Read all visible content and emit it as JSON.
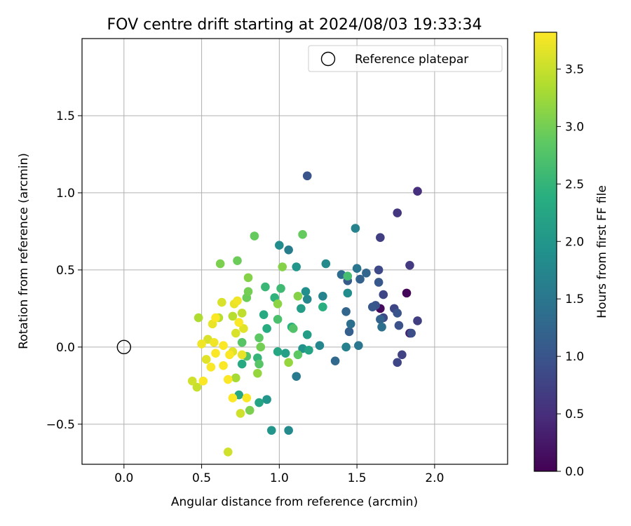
{
  "chart_data": {
    "type": "scatter",
    "title": "FOV centre drift starting at 2024/08/03 19:33:34",
    "xlabel": "Angular distance from reference (arcmin)",
    "ylabel": "Rotation from reference (arcmin)",
    "xlim": [
      -0.27,
      2.47
    ],
    "ylim": [
      -0.76,
      2.0
    ],
    "xticks": [
      0.0,
      0.5,
      1.0,
      1.5,
      2.0
    ],
    "xtick_labels": [
      "0.0",
      "0.5",
      "1.0",
      "1.5",
      "2.0"
    ],
    "yticks": [
      -0.5,
      0.0,
      0.5,
      1.0,
      1.5
    ],
    "ytick_labels": [
      "−0.5",
      "0.0",
      "0.5",
      "1.0",
      "1.5"
    ],
    "grid": true,
    "legend": {
      "position": "top-right",
      "entries": [
        "Reference platepar"
      ]
    },
    "reference_point": {
      "x": 0.0,
      "y": 0.0,
      "label": "Reference platepar"
    },
    "colorbar": {
      "label": "Hours from first FF file",
      "range": [
        0.0,
        3.82
      ],
      "ticks": [
        0.0,
        0.5,
        1.0,
        1.5,
        2.0,
        2.5,
        3.0,
        3.5
      ],
      "tick_labels": [
        "0.0",
        "0.5",
        "1.0",
        "1.5",
        "2.0",
        "2.5",
        "3.0",
        "3.5"
      ],
      "colormap": "viridis"
    },
    "points": [
      {
        "x": 1.82,
        "y": 0.35,
        "t": 0.05
      },
      {
        "x": 1.65,
        "y": 0.25,
        "t": 0.1
      },
      {
        "x": 1.84,
        "y": 0.09,
        "t": 0.3
      },
      {
        "x": 1.89,
        "y": 1.01,
        "t": 0.5
      },
      {
        "x": 1.76,
        "y": 0.87,
        "t": 0.6
      },
      {
        "x": 1.84,
        "y": 0.53,
        "t": 0.65
      },
      {
        "x": 1.65,
        "y": 0.71,
        "t": 0.7
      },
      {
        "x": 1.89,
        "y": 0.17,
        "t": 0.7
      },
      {
        "x": 1.79,
        "y": -0.05,
        "t": 0.75
      },
      {
        "x": 1.76,
        "y": -0.1,
        "t": 0.8
      },
      {
        "x": 1.74,
        "y": 0.25,
        "t": 0.8
      },
      {
        "x": 1.67,
        "y": 0.34,
        "t": 0.8
      },
      {
        "x": 1.64,
        "y": 0.5,
        "t": 0.85
      },
      {
        "x": 1.67,
        "y": 0.19,
        "t": 0.85
      },
      {
        "x": 1.85,
        "y": 0.09,
        "t": 0.9
      },
      {
        "x": 1.77,
        "y": 0.14,
        "t": 0.95
      },
      {
        "x": 1.62,
        "y": 0.27,
        "t": 0.95
      },
      {
        "x": 1.18,
        "y": 1.11,
        "t": 1.0
      },
      {
        "x": 1.76,
        "y": 0.22,
        "t": 1.0
      },
      {
        "x": 1.64,
        "y": 0.42,
        "t": 1.05
      },
      {
        "x": 1.6,
        "y": 0.26,
        "t": 1.05
      },
      {
        "x": 1.44,
        "y": 0.43,
        "t": 1.1
      },
      {
        "x": 1.45,
        "y": 0.1,
        "t": 1.15
      },
      {
        "x": 1.65,
        "y": 0.18,
        "t": 1.2
      },
      {
        "x": 1.52,
        "y": 0.44,
        "t": 1.2
      },
      {
        "x": 1.56,
        "y": 0.48,
        "t": 1.25
      },
      {
        "x": 1.43,
        "y": 0.23,
        "t": 1.25
      },
      {
        "x": 1.36,
        "y": -0.09,
        "t": 1.3
      },
      {
        "x": 1.4,
        "y": 0.47,
        "t": 1.35
      },
      {
        "x": 1.66,
        "y": 0.13,
        "t": 1.4
      },
      {
        "x": 1.46,
        "y": 0.15,
        "t": 1.4
      },
      {
        "x": 1.51,
        "y": 0.01,
        "t": 1.5
      },
      {
        "x": 1.5,
        "y": 0.51,
        "t": 1.5
      },
      {
        "x": 1.11,
        "y": -0.19,
        "t": 1.55
      },
      {
        "x": 1.06,
        "y": 0.63,
        "t": 1.6
      },
      {
        "x": 1.43,
        "y": 0.0,
        "t": 1.65
      },
      {
        "x": 1.49,
        "y": 0.77,
        "t": 1.7
      },
      {
        "x": 1.28,
        "y": 0.33,
        "t": 1.7
      },
      {
        "x": 1.26,
        "y": 0.01,
        "t": 1.75
      },
      {
        "x": 1.18,
        "y": 0.31,
        "t": 1.75
      },
      {
        "x": 1.3,
        "y": 0.54,
        "t": 1.8
      },
      {
        "x": 1.06,
        "y": -0.54,
        "t": 1.8
      },
      {
        "x": 1.0,
        "y": 0.66,
        "t": 1.85
      },
      {
        "x": 1.44,
        "y": 0.35,
        "t": 1.85
      },
      {
        "x": 1.17,
        "y": 0.36,
        "t": 1.9
      },
      {
        "x": 1.15,
        "y": -0.01,
        "t": 1.95
      },
      {
        "x": 0.95,
        "y": -0.54,
        "t": 2.0
      },
      {
        "x": 0.92,
        "y": -0.34,
        "t": 2.0
      },
      {
        "x": 1.11,
        "y": 0.52,
        "t": 2.0
      },
      {
        "x": 1.14,
        "y": 0.25,
        "t": 2.1
      },
      {
        "x": 1.18,
        "y": 0.08,
        "t": 2.1
      },
      {
        "x": 1.04,
        "y": -0.04,
        "t": 2.15
      },
      {
        "x": 1.19,
        "y": -0.02,
        "t": 2.2
      },
      {
        "x": 0.87,
        "y": -0.36,
        "t": 2.2
      },
      {
        "x": 0.99,
        "y": -0.03,
        "t": 2.25
      },
      {
        "x": 0.74,
        "y": -0.31,
        "t": 2.25
      },
      {
        "x": 0.76,
        "y": -0.11,
        "t": 2.3
      },
      {
        "x": 0.9,
        "y": 0.21,
        "t": 2.3
      },
      {
        "x": 0.92,
        "y": 0.12,
        "t": 2.35
      },
      {
        "x": 1.28,
        "y": 0.26,
        "t": 2.4
      },
      {
        "x": 1.08,
        "y": 0.13,
        "t": 2.4
      },
      {
        "x": 0.97,
        "y": 0.32,
        "t": 2.45
      },
      {
        "x": 0.86,
        "y": -0.07,
        "t": 2.5
      },
      {
        "x": 0.91,
        "y": 0.39,
        "t": 2.55
      },
      {
        "x": 1.01,
        "y": 0.38,
        "t": 2.6
      },
      {
        "x": 1.44,
        "y": 0.46,
        "t": 2.65
      },
      {
        "x": 0.99,
        "y": 0.18,
        "t": 2.7
      },
      {
        "x": 1.09,
        "y": 0.12,
        "t": 2.75
      },
      {
        "x": 0.79,
        "y": -0.06,
        "t": 2.75
      },
      {
        "x": 0.76,
        "y": 0.03,
        "t": 2.8
      },
      {
        "x": 0.87,
        "y": -0.11,
        "t": 2.8
      },
      {
        "x": 1.12,
        "y": -0.05,
        "t": 2.85
      },
      {
        "x": 0.87,
        "y": 0.06,
        "t": 2.85
      },
      {
        "x": 1.15,
        "y": 0.73,
        "t": 2.9
      },
      {
        "x": 0.84,
        "y": 0.72,
        "t": 2.9
      },
      {
        "x": 0.73,
        "y": 0.56,
        "t": 2.95
      },
      {
        "x": 0.79,
        "y": 0.32,
        "t": 2.95
      },
      {
        "x": 0.8,
        "y": 0.36,
        "t": 3.0
      },
      {
        "x": 0.88,
        "y": 0.0,
        "t": 3.0
      },
      {
        "x": 0.62,
        "y": 0.54,
        "t": 3.05
      },
      {
        "x": 0.81,
        "y": -0.41,
        "t": 3.05
      },
      {
        "x": 0.8,
        "y": 0.45,
        "t": 3.1
      },
      {
        "x": 1.12,
        "y": 0.33,
        "t": 3.1
      },
      {
        "x": 1.02,
        "y": 0.52,
        "t": 3.1
      },
      {
        "x": 0.99,
        "y": 0.28,
        "t": 3.15
      },
      {
        "x": 1.06,
        "y": -0.1,
        "t": 3.2
      },
      {
        "x": 0.86,
        "y": -0.17,
        "t": 3.2
      },
      {
        "x": 0.72,
        "y": -0.2,
        "t": 3.3
      },
      {
        "x": 0.48,
        "y": 0.19,
        "t": 3.35
      },
      {
        "x": 0.61,
        "y": 0.19,
        "t": 3.4
      },
      {
        "x": 0.7,
        "y": 0.2,
        "t": 3.4
      },
      {
        "x": 0.76,
        "y": 0.22,
        "t": 3.45
      },
      {
        "x": 0.47,
        "y": -0.26,
        "t": 3.5
      },
      {
        "x": 0.67,
        "y": -0.68,
        "t": 3.55
      },
      {
        "x": 0.75,
        "y": -0.43,
        "t": 3.55
      },
      {
        "x": 0.44,
        "y": -0.22,
        "t": 3.55
      },
      {
        "x": 0.72,
        "y": 0.09,
        "t": 3.6
      },
      {
        "x": 0.54,
        "y": 0.05,
        "t": 3.6
      },
      {
        "x": 0.63,
        "y": 0.29,
        "t": 3.6
      },
      {
        "x": 0.53,
        "y": -0.08,
        "t": 3.65
      },
      {
        "x": 0.77,
        "y": 0.12,
        "t": 3.65
      },
      {
        "x": 0.7,
        "y": -0.03,
        "t": 3.65
      },
      {
        "x": 0.76,
        "y": -0.05,
        "t": 3.7
      },
      {
        "x": 0.57,
        "y": 0.15,
        "t": 3.7
      },
      {
        "x": 0.71,
        "y": 0.28,
        "t": 3.7
      },
      {
        "x": 0.73,
        "y": 0.3,
        "t": 3.75
      },
      {
        "x": 0.5,
        "y": 0.02,
        "t": 3.75
      },
      {
        "x": 0.58,
        "y": 0.03,
        "t": 3.75
      },
      {
        "x": 0.64,
        "y": 0.01,
        "t": 3.8
      },
      {
        "x": 0.64,
        "y": -0.12,
        "t": 3.8
      },
      {
        "x": 0.67,
        "y": -0.21,
        "t": 3.8
      },
      {
        "x": 0.59,
        "y": 0.19,
        "t": 3.8
      },
      {
        "x": 0.7,
        "y": -0.33,
        "t": 3.8
      },
      {
        "x": 0.79,
        "y": -0.33,
        "t": 3.8
      },
      {
        "x": 0.51,
        "y": -0.22,
        "t": 3.8
      },
      {
        "x": 0.56,
        "y": -0.13,
        "t": 3.8
      },
      {
        "x": 0.68,
        "y": -0.05,
        "t": 3.8
      },
      {
        "x": 0.74,
        "y": 0.16,
        "t": 3.8
      },
      {
        "x": 0.59,
        "y": -0.04,
        "t": 3.8
      }
    ]
  }
}
